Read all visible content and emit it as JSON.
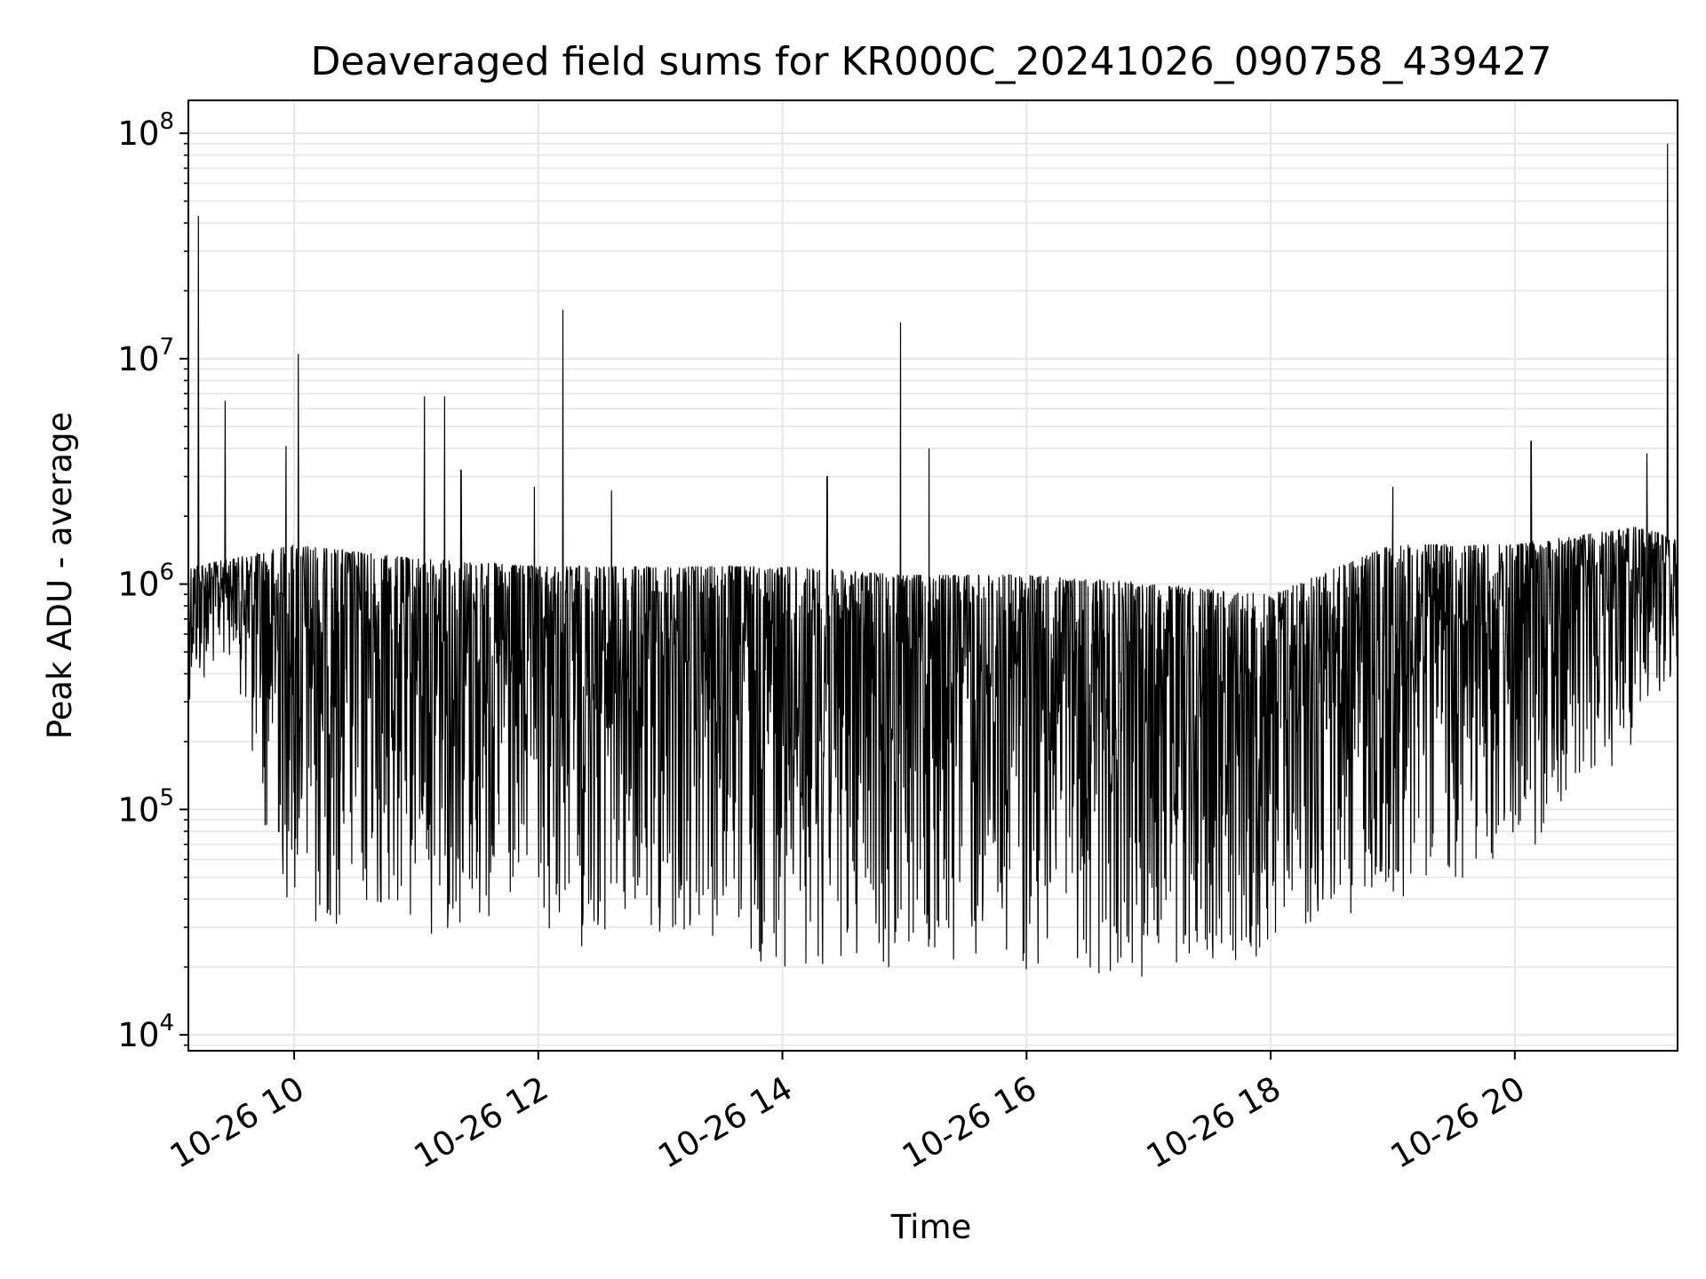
{
  "chart_data": {
    "type": "line",
    "title": "Deaveraged field sums for KR000C_20241026_090758_439427",
    "xlabel": "Time",
    "ylabel": "Peak ADU - average",
    "yscale": "log",
    "ylim": [
      8500,
      140000000
    ],
    "xlim": [
      "2024-10-26 09:08",
      "2024-10-26 21:20"
    ],
    "grid": true,
    "line_color": "#000000",
    "grid_color": "#e6e6e6",
    "x_ticks": [
      {
        "value": "2024-10-26 10:00",
        "label": "10-26 10"
      },
      {
        "value": "2024-10-26 12:00",
        "label": "10-26 12"
      },
      {
        "value": "2024-10-26 14:00",
        "label": "10-26 14"
      },
      {
        "value": "2024-10-26 16:00",
        "label": "10-26 16"
      },
      {
        "value": "2024-10-26 18:00",
        "label": "10-26 18"
      },
      {
        "value": "2024-10-26 20:00",
        "label": "10-26 20"
      }
    ],
    "y_ticks": [
      {
        "value": 10000,
        "base": "10",
        "exp": "4"
      },
      {
        "value": 100000,
        "base": "10",
        "exp": "5"
      },
      {
        "value": 1000000,
        "base": "10",
        "exp": "6"
      },
      {
        "value": 10000000,
        "base": "10",
        "exp": "7"
      },
      {
        "value": 100000000,
        "base": "10",
        "exp": "8"
      }
    ],
    "series": [
      {
        "description": "dense noisy trace; approximate envelope and notable spikes",
        "upper_envelope": {
          "x": [
            "2024-10-26 09:08",
            "2024-10-26 09:30",
            "2024-10-26 10:00",
            "2024-10-26 11:00",
            "2024-10-26 12:00",
            "2024-10-26 13:00",
            "2024-10-26 14:00",
            "2024-10-26 15:00",
            "2024-10-26 16:00",
            "2024-10-26 17:00",
            "2024-10-26 18:00",
            "2024-10-26 19:00",
            "2024-10-26 20:00",
            "2024-10-26 21:00",
            "2024-10-26 21:20"
          ],
          "y": [
            1200000,
            1300000,
            1500000,
            1300000,
            1200000,
            1200000,
            1200000,
            1100000,
            1100000,
            1000000,
            900000,
            1500000,
            1500000,
            1800000,
            1600000
          ]
        },
        "lower_envelope": {
          "x": [
            "2024-10-26 09:08",
            "2024-10-26 09:30",
            "2024-10-26 09:45",
            "2024-10-26 10:00",
            "2024-10-26 11:00",
            "2024-10-26 12:00",
            "2024-10-26 13:00",
            "2024-10-26 14:00",
            "2024-10-26 15:00",
            "2024-10-26 16:00",
            "2024-10-26 17:00",
            "2024-10-26 18:00",
            "2024-10-26 19:00",
            "2024-10-26 20:00",
            "2024-10-26 21:00",
            "2024-10-26 21:20"
          ],
          "y": [
            300000,
            500000,
            80000,
            30000,
            28000,
            25000,
            22000,
            20000,
            19000,
            19000,
            18000,
            22000,
            40000,
            55000,
            200000,
            400000
          ]
        },
        "spikes": [
          {
            "x": "2024-10-26 09:13",
            "y": 43000000
          },
          {
            "x": "2024-10-26 09:26",
            "y": 6500000
          },
          {
            "x": "2024-10-26 09:56",
            "y": 4100000
          },
          {
            "x": "2024-10-26 10:02",
            "y": 10500000
          },
          {
            "x": "2024-10-26 11:04",
            "y": 6800000
          },
          {
            "x": "2024-10-26 11:14",
            "y": 6800000
          },
          {
            "x": "2024-10-26 11:22",
            "y": 3200000
          },
          {
            "x": "2024-10-26 11:58",
            "y": 2700000
          },
          {
            "x": "2024-10-26 12:12",
            "y": 16500000
          },
          {
            "x": "2024-10-26 12:36",
            "y": 2600000
          },
          {
            "x": "2024-10-26 14:22",
            "y": 3000000
          },
          {
            "x": "2024-10-26 14:58",
            "y": 14500000
          },
          {
            "x": "2024-10-26 15:12",
            "y": 4000000
          },
          {
            "x": "2024-10-26 19:00",
            "y": 2700000
          },
          {
            "x": "2024-10-26 20:08",
            "y": 4300000
          },
          {
            "x": "2024-10-26 21:05",
            "y": 3800000
          },
          {
            "x": "2024-10-26 21:15",
            "y": 90000000
          }
        ]
      }
    ]
  }
}
